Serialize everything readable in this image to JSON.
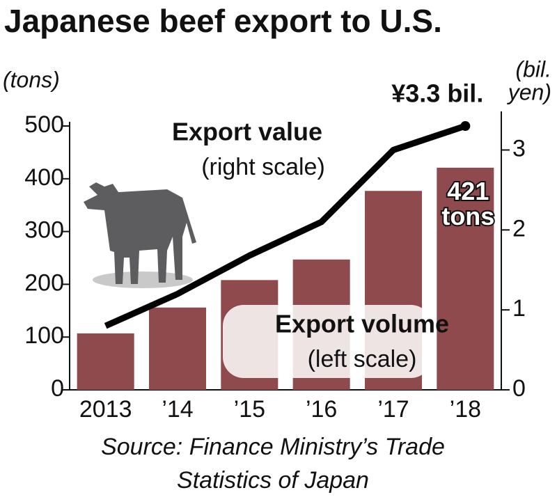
{
  "chart_data": {
    "type": "bar_line",
    "title": "Japanese beef export to U.S.",
    "y_label": "(tons)",
    "y2_label": [
      "(bil.",
      "yen)"
    ],
    "categories": [
      "2013",
      "’14",
      "’15",
      "’16",
      "’17",
      "’18"
    ],
    "series": [
      {
        "name": "Export volume",
        "note": "(left scale)",
        "type": "bar",
        "color": "#8f4a4e",
        "values": [
          107,
          156,
          208,
          247,
          377,
          421
        ],
        "value_labels": [
          null,
          null,
          null,
          null,
          null,
          "421 tons"
        ]
      },
      {
        "name": "Export value",
        "note": "(right scale)",
        "type": "line",
        "axis": "y2",
        "color": "#000000",
        "values": [
          0.8,
          1.2,
          1.68,
          2.1,
          3.0,
          3.3
        ],
        "value_labels": [
          null,
          null,
          null,
          null,
          null,
          "¥3.3 bil."
        ]
      }
    ],
    "ylim": [
      0,
      500
    ],
    "yticks": [
      0,
      100,
      200,
      300,
      400,
      500
    ],
    "y2lim": [
      0,
      3.3
    ],
    "y2ticks": [
      0,
      1,
      2,
      3
    ],
    "source": [
      "Source: Finance Ministry’s Trade",
      "Statistics of Japan"
    ]
  }
}
